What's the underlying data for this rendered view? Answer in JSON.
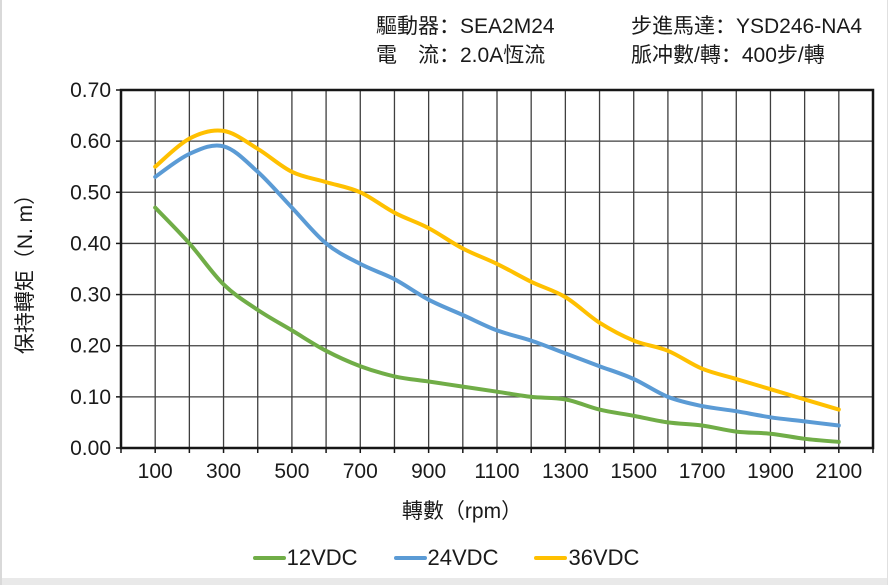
{
  "header": {
    "driver": "驅動器：SEA2M24",
    "current": "電　流：2.0A恆流",
    "motor": "步進馬達：YSD246-NA4",
    "pulses": "脈冲數/轉：400步/轉"
  },
  "chart_data": {
    "type": "line",
    "xlabel": "轉數（rpm）",
    "ylabel": "保持轉矩（N. m）",
    "xlim": [
      0,
      2200
    ],
    "ylim": [
      0.0,
      0.7
    ],
    "x_grid_step": 100,
    "y_grid_step": 0.1,
    "grid": true,
    "legend_position": "bottom",
    "x_tick_labels": [
      "100",
      "300",
      "500",
      "700",
      "900",
      "1100",
      "1300",
      "1500",
      "1700",
      "1900",
      "2100"
    ],
    "y_tick_labels": [
      "0.00",
      "0.10",
      "0.20",
      "0.30",
      "0.40",
      "0.50",
      "0.60",
      "0.70"
    ],
    "x": [
      100,
      200,
      300,
      400,
      500,
      600,
      700,
      800,
      900,
      1000,
      1100,
      1200,
      1300,
      1400,
      1500,
      1600,
      1700,
      1800,
      1900,
      2000,
      2100
    ],
    "series": [
      {
        "name": "12VDC",
        "color": "#70AD47",
        "values": [
          0.47,
          0.4,
          0.32,
          0.27,
          0.23,
          0.19,
          0.16,
          0.14,
          0.13,
          0.12,
          0.11,
          0.1,
          0.095,
          0.075,
          0.063,
          0.05,
          0.044,
          0.032,
          0.028,
          0.018,
          0.012
        ]
      },
      {
        "name": "24VDC",
        "color": "#5B9BD5",
        "values": [
          0.53,
          0.575,
          0.59,
          0.54,
          0.47,
          0.4,
          0.36,
          0.33,
          0.29,
          0.26,
          0.23,
          0.21,
          0.185,
          0.16,
          0.135,
          0.1,
          0.082,
          0.072,
          0.06,
          0.052,
          0.044
        ]
      },
      {
        "name": "36VDC",
        "color": "#FFC000",
        "values": [
          0.55,
          0.605,
          0.62,
          0.585,
          0.54,
          0.52,
          0.5,
          0.46,
          0.43,
          0.39,
          0.36,
          0.325,
          0.295,
          0.245,
          0.21,
          0.19,
          0.155,
          0.135,
          0.115,
          0.095,
          0.075
        ]
      }
    ],
    "style": {
      "grid_color": "#3f3f3f",
      "frame_color": "#161616",
      "text_color": "#1a1a1a"
    }
  }
}
